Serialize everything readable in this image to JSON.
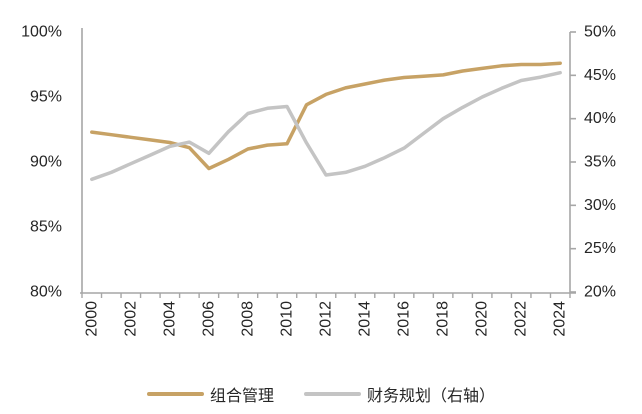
{
  "chart_data": {
    "type": "line",
    "title": "",
    "x": [
      2000,
      2001,
      2002,
      2003,
      2004,
      2005,
      2006,
      2007,
      2008,
      2009,
      2010,
      2011,
      2012,
      2013,
      2014,
      2015,
      2016,
      2017,
      2018,
      2019,
      2020,
      2021,
      2022,
      2023,
      2024
    ],
    "x_tick_labels": [
      "2000",
      "2002",
      "2004",
      "2006",
      "2008",
      "2010",
      "2012",
      "2014",
      "2016",
      "2018",
      "2020",
      "2022",
      "2024"
    ],
    "series": [
      {
        "name": "组合管理",
        "axis": "left",
        "color": "#C7A265",
        "values": [
          92.3,
          92.1,
          91.9,
          91.7,
          91.5,
          91.1,
          89.5,
          90.2,
          91.0,
          91.3,
          91.4,
          94.4,
          95.2,
          95.7,
          96.0,
          96.3,
          96.5,
          96.6,
          96.7,
          97.0,
          97.2,
          97.4,
          97.5,
          97.5,
          97.6
        ]
      },
      {
        "name": "财务规划（右轴）",
        "axis": "right",
        "color": "#C4C4C4",
        "values": [
          33.0,
          33.8,
          34.8,
          35.8,
          36.8,
          37.3,
          36.0,
          38.5,
          40.6,
          41.2,
          41.4,
          37.2,
          33.5,
          33.8,
          34.5,
          35.5,
          36.6,
          38.3,
          40.0,
          41.3,
          42.5,
          43.5,
          44.4,
          44.8,
          45.3
        ]
      }
    ],
    "left_axis": {
      "min": 80,
      "max": 100,
      "step": 5,
      "tick_labels": [
        "100%",
        "95%",
        "90%",
        "85%",
        "80%"
      ],
      "unit": "%"
    },
    "right_axis": {
      "min": 20,
      "max": 50,
      "step": 5,
      "tick_labels": [
        "50%",
        "45%",
        "40%",
        "35%",
        "30%",
        "25%",
        "20%"
      ],
      "unit": "%"
    },
    "grid": false,
    "legend_position": "bottom"
  },
  "legend": {
    "items": [
      {
        "label": "组合管理",
        "color": "#C7A265"
      },
      {
        "label": "财务规划（右轴）",
        "color": "#C4C4C4"
      }
    ]
  },
  "colors": {
    "axis_line": "#A6A6A6",
    "text": "#262626",
    "background": "#FFFFFF",
    "series_gold": "#C7A265",
    "series_gray": "#C4C4C4"
  }
}
